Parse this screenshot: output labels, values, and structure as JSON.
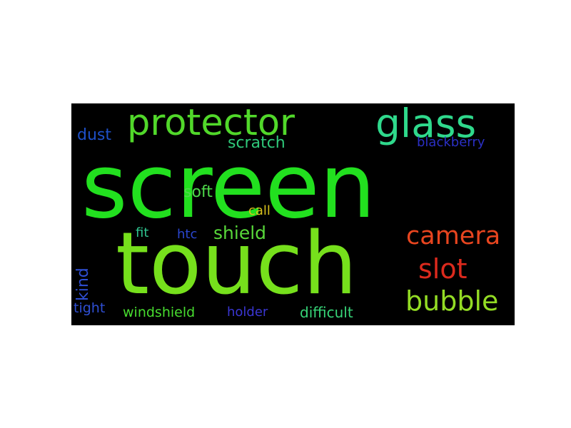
{
  "word_cloud": {
    "background": "#000000",
    "words": [
      {
        "text": "screen",
        "color": "#22e01f"
      },
      {
        "text": "touch",
        "color": "#76e01c"
      },
      {
        "text": "protector",
        "color": "#51d82a"
      },
      {
        "text": "glass",
        "color": "#2fd98c"
      },
      {
        "text": "camera",
        "color": "#e8451f"
      },
      {
        "text": "slot",
        "color": "#dc2a1d"
      },
      {
        "text": "bubble",
        "color": "#93dc24"
      },
      {
        "text": "scratch",
        "color": "#2fc97a"
      },
      {
        "text": "dust",
        "color": "#1e50c8"
      },
      {
        "text": "blackberry",
        "color": "#2a2fc4"
      },
      {
        "text": "soft",
        "color": "#4ed84a"
      },
      {
        "text": "call",
        "color": "#d9c21c"
      },
      {
        "text": "fit",
        "color": "#2fc48f"
      },
      {
        "text": "htc",
        "color": "#2a46cf"
      },
      {
        "text": "shield",
        "color": "#58d83a"
      },
      {
        "text": "kind",
        "color": "#2f4fd4"
      },
      {
        "text": "tight",
        "color": "#2f4fd4"
      },
      {
        "text": "windshield",
        "color": "#47dc2f"
      },
      {
        "text": "holder",
        "color": "#3a36d2"
      },
      {
        "text": "difficult",
        "color": "#37d478"
      }
    ]
  }
}
